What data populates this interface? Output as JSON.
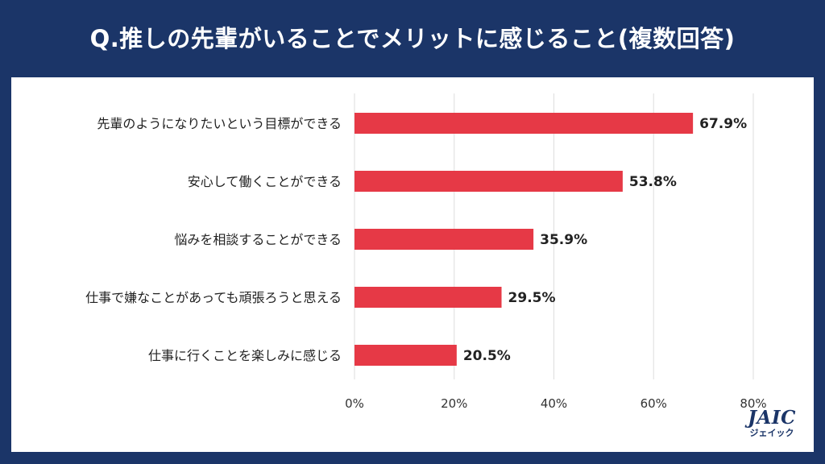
{
  "title": "Q.推しの先輩がいることでメリットに感じること(複数回答)",
  "logo": {
    "mark": "JAIC",
    "sub": "ジェイック"
  },
  "colors": {
    "background": "#1b3568",
    "bar": "#e63946",
    "grid": "#dddddd"
  },
  "chart_data": {
    "type": "bar",
    "orientation": "horizontal",
    "title": "Q.推しの先輩がいることでメリットに感じること(複数回答)",
    "categories": [
      "先輩のようになりたいという目標ができる",
      "安心して働くことができる",
      "悩みを相談することができる",
      "仕事で嫌なことがあっても頑張ろうと思える",
      "仕事に行くことを楽しみに感じる"
    ],
    "values": [
      67.9,
      53.8,
      35.9,
      29.5,
      20.5
    ],
    "value_labels": [
      "67.9%",
      "53.8%",
      "35.9%",
      "29.5%",
      "20.5%"
    ],
    "xlim": [
      0,
      80
    ],
    "ticks": [
      0,
      20,
      40,
      60,
      80
    ],
    "tick_labels": [
      "0%",
      "20%",
      "40%",
      "60%",
      "80%"
    ],
    "xlabel": "",
    "ylabel": "",
    "grid": true,
    "legend": false
  }
}
